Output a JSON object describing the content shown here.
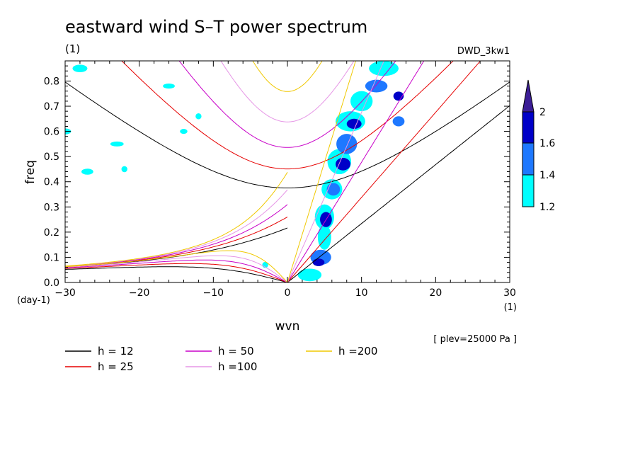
{
  "chart_data": {
    "type": "heatmap",
    "title": "eastward wind S–T power spectrum",
    "units_label": "(1)",
    "dataset_label": "DWD_3kw1",
    "xlabel": "wvn",
    "ylabel": "freq",
    "x_unit_label": "(1)",
    "y_unit_label": "(day-1)",
    "level_note": "[ plev=25000 Pa ]",
    "xlim": [
      -30,
      30
    ],
    "ylim": [
      0,
      0.88
    ],
    "xticks": [
      -30,
      -20,
      -10,
      0,
      10,
      20,
      30
    ],
    "yticks": [
      0.0,
      0.1,
      0.2,
      0.3,
      0.4,
      0.5,
      0.6,
      0.7,
      0.8
    ],
    "ytick_labels": [
      "0.0",
      "0.1",
      "0.2",
      "0.3",
      "0.4",
      "0.5",
      "0.6",
      "0.7",
      "0.8"
    ],
    "colorbar": {
      "levels": [
        1.2,
        1.4,
        1.6,
        2
      ],
      "labels": [
        "1.2",
        "1.4",
        "1.6",
        "2"
      ],
      "colors": [
        "#00ffff",
        "#1e78ff",
        "#0000c8",
        "#3c1e96"
      ]
    },
    "contours": [
      {
        "x": 3,
        "y": 0.03,
        "rx": 1.6,
        "ry": 0.025,
        "level": 0
      },
      {
        "x": 4.5,
        "y": 0.1,
        "rx": 1.4,
        "ry": 0.03,
        "level": 1
      },
      {
        "x": 4.2,
        "y": 0.08,
        "rx": 0.8,
        "ry": 0.015,
        "level": 2
      },
      {
        "x": 5,
        "y": 0.18,
        "rx": 0.9,
        "ry": 0.05,
        "level": 0
      },
      {
        "x": 5,
        "y": 0.26,
        "rx": 1.3,
        "ry": 0.05,
        "level": 0
      },
      {
        "x": 5.2,
        "y": 0.25,
        "rx": 0.8,
        "ry": 0.03,
        "level": 2
      },
      {
        "x": 6,
        "y": 0.37,
        "rx": 1.4,
        "ry": 0.04,
        "level": 0
      },
      {
        "x": 6.2,
        "y": 0.37,
        "rx": 0.9,
        "ry": 0.025,
        "level": 1
      },
      {
        "x": 7,
        "y": 0.48,
        "rx": 1.6,
        "ry": 0.05,
        "level": 0
      },
      {
        "x": 7.5,
        "y": 0.47,
        "rx": 1,
        "ry": 0.025,
        "level": 2
      },
      {
        "x": 8,
        "y": 0.55,
        "rx": 1.4,
        "ry": 0.04,
        "level": 1
      },
      {
        "x": 8.5,
        "y": 0.64,
        "rx": 2,
        "ry": 0.04,
        "level": 0
      },
      {
        "x": 9,
        "y": 0.63,
        "rx": 1,
        "ry": 0.02,
        "level": 2
      },
      {
        "x": 10,
        "y": 0.72,
        "rx": 1.5,
        "ry": 0.04,
        "level": 0
      },
      {
        "x": 12,
        "y": 0.78,
        "rx": 1.5,
        "ry": 0.025,
        "level": 1
      },
      {
        "x": 13,
        "y": 0.85,
        "rx": 2,
        "ry": 0.03,
        "level": 0
      },
      {
        "x": 15,
        "y": 0.64,
        "rx": 0.8,
        "ry": 0.02,
        "level": 1
      },
      {
        "x": 15,
        "y": 0.74,
        "rx": 0.7,
        "ry": 0.018,
        "level": 2
      },
      {
        "x": -28,
        "y": 0.85,
        "rx": 1,
        "ry": 0.015,
        "level": 0
      },
      {
        "x": -27,
        "y": 0.44,
        "rx": 0.8,
        "ry": 0.012,
        "level": 0
      },
      {
        "x": -30,
        "y": 0.6,
        "rx": 0.8,
        "ry": 0.012,
        "level": 0
      },
      {
        "x": -23,
        "y": 0.55,
        "rx": 0.9,
        "ry": 0.01,
        "level": 0
      },
      {
        "x": -16,
        "y": 0.78,
        "rx": 0.8,
        "ry": 0.01,
        "level": 0
      },
      {
        "x": -22,
        "y": 0.45,
        "rx": 0.4,
        "ry": 0.012,
        "level": 0
      },
      {
        "x": -14,
        "y": 0.6,
        "rx": 0.5,
        "ry": 0.01,
        "level": 0
      },
      {
        "x": -12,
        "y": 0.66,
        "rx": 0.4,
        "ry": 0.012,
        "level": 0
      },
      {
        "x": -3,
        "y": 0.07,
        "rx": 0.4,
        "ry": 0.012,
        "level": 0
      }
    ],
    "dispersion_curves": [
      {
        "name": "h = 12",
        "h": 12,
        "color": "#000000"
      },
      {
        "name": "h = 25",
        "h": 25,
        "color": "#e60000"
      },
      {
        "name": "h = 50",
        "h": 50,
        "color": "#c800c8"
      },
      {
        "name": "h =100",
        "h": 100,
        "color": "#e696e6"
      },
      {
        "name": "h =200",
        "h": 200,
        "color": "#f0c800"
      }
    ],
    "legend": [
      {
        "label": "h = 12",
        "color": "#000000"
      },
      {
        "label": "h = 25",
        "color": "#e60000"
      },
      {
        "label": "h = 50",
        "color": "#c800c8"
      },
      {
        "label": "h =100",
        "color": "#e696e6"
      },
      {
        "label": "h =200",
        "color": "#f0c800"
      }
    ]
  }
}
